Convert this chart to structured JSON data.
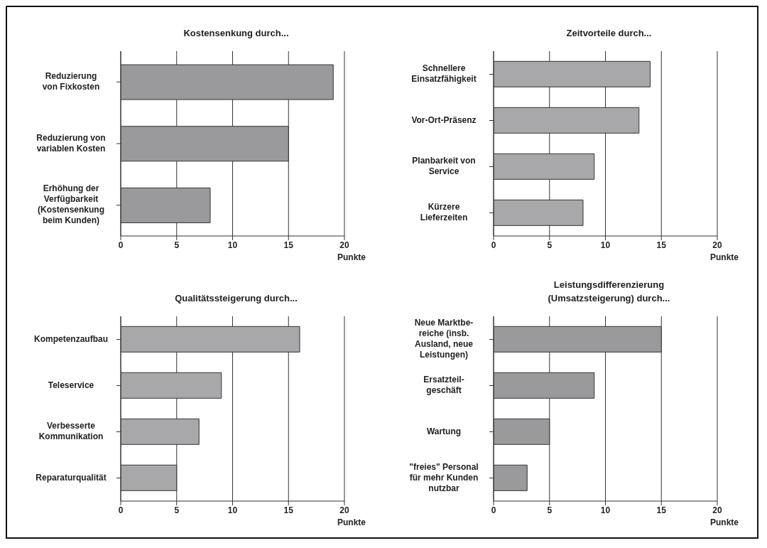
{
  "chart_data": [
    {
      "type": "bar",
      "orientation": "horizontal",
      "title": "Kostensenkung durch...",
      "xlabel": "Punkte",
      "categories": [
        "Reduzierung\nvon Fixkosten",
        "Reduzierung von\nvariablen Kosten",
        "Erhöhung der\nVerfügbarkeit\n(Kostensenkung\nbeim Kunden)"
      ],
      "values": [
        19,
        15,
        8
      ],
      "color": "#9a9a9c",
      "xlim": [
        0,
        20
      ],
      "xticks": [
        0,
        5,
        10,
        15,
        20
      ],
      "grid": "x"
    },
    {
      "type": "bar",
      "orientation": "horizontal",
      "title": "Zeitvorteile durch...",
      "xlabel": "Punkte",
      "categories": [
        "Schnellere\nEinsatzfähigkeit",
        "Vor-Ort-Präsenz",
        "Planbarkeit von\nService",
        "Kürzere\nLieferzeiten"
      ],
      "values": [
        14,
        13,
        9,
        8
      ],
      "color": "#a8a8aa",
      "xlim": [
        0,
        20
      ],
      "xticks": [
        0,
        5,
        10,
        15,
        20
      ],
      "grid": "x"
    },
    {
      "type": "bar",
      "orientation": "horizontal",
      "title": "Qualitätssteigerung durch...",
      "xlabel": "Punkte",
      "categories": [
        "Kompetenzaufbau",
        "Teleservice",
        "Verbesserte\nKommunikation",
        "Reparaturqualität"
      ],
      "values": [
        16,
        9,
        7,
        5
      ],
      "color": "#a8a8aa",
      "xlim": [
        0,
        20
      ],
      "xticks": [
        0,
        5,
        10,
        15,
        20
      ],
      "grid": "x"
    },
    {
      "type": "bar",
      "orientation": "horizontal",
      "title": "Leistungsdifferenzierung\n(Umsatzsteigerung) durch...",
      "xlabel": "Punkte",
      "categories": [
        "Neue Marktbe-\nreiche (insb.\nAusland, neue\nLeistungen)",
        "Ersatzteil-\ngeschäft",
        "Wartung",
        "\"freies\" Personal\nfür mehr Kunden\nnutzbar"
      ],
      "values": [
        15,
        9,
        5,
        3
      ],
      "color": "#9a9a9c",
      "xlim": [
        0,
        20
      ],
      "xticks": [
        0,
        5,
        10,
        15,
        20
      ],
      "grid": "x"
    }
  ]
}
